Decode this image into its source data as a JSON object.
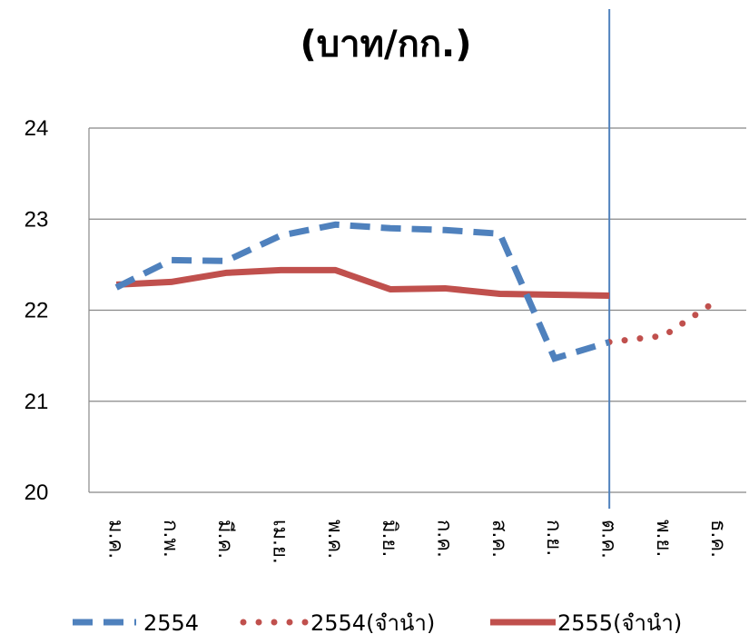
{
  "chart_data": {
    "type": "line",
    "title": "(บาท/กก.)",
    "categories": [
      "ม.ค.",
      "ก.พ.",
      "มี.ค.",
      "เม.ย.",
      "พ.ค.",
      "มิ.ย.",
      "ก.ค.",
      "ส.ค.",
      "ก.ย.",
      "ต.ค.",
      "พ.ย.",
      "ธ.ค."
    ],
    "ylim": [
      20,
      24
    ],
    "yticks": [
      20,
      21,
      22,
      23,
      24
    ],
    "grid": true,
    "legend_position": "bottom",
    "vertical_marker_category": "ต.ค.",
    "series": [
      {
        "name": "2554",
        "style": "dashed",
        "color": "#4f81bd",
        "values": [
          22.25,
          22.55,
          22.54,
          22.82,
          22.94,
          22.9,
          22.88,
          22.84,
          21.47,
          21.65,
          null,
          null
        ]
      },
      {
        "name": "2554(จำนำ)",
        "style": "dotted",
        "color": "#c0504d",
        "values": [
          null,
          null,
          null,
          null,
          null,
          null,
          null,
          null,
          null,
          21.65,
          21.72,
          22.12
        ]
      },
      {
        "name": "2555(จำนำ)",
        "style": "solid",
        "color": "#c0504d",
        "values": [
          22.28,
          22.31,
          22.41,
          22.44,
          22.44,
          22.23,
          22.24,
          22.18,
          22.17,
          22.16,
          null,
          null
        ]
      }
    ]
  }
}
